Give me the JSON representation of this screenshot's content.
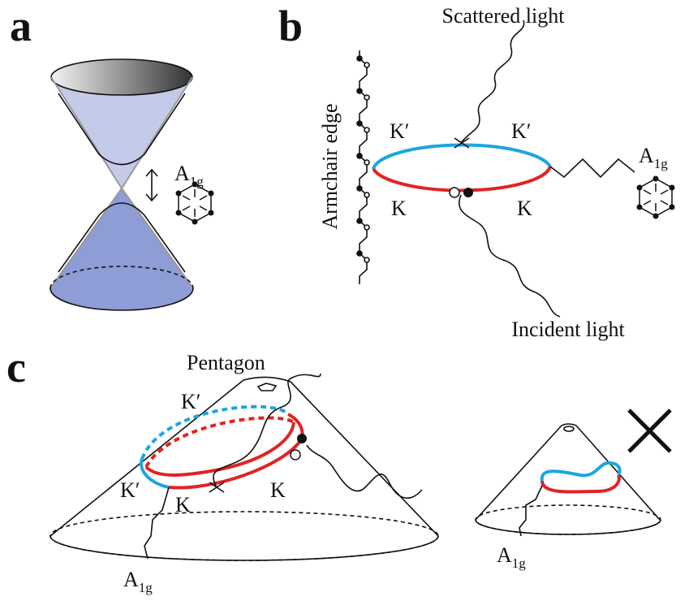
{
  "panel_a": {
    "label": "a",
    "phonon_label": {
      "main": "A",
      "sub": "1g"
    }
  },
  "panel_b": {
    "label": "b",
    "scattered": "Scattered light",
    "incident": "Incident light",
    "edge": "Armchair edge",
    "valley_top_left": "K′",
    "valley_top_right": "K′",
    "valley_bottom_left": "K",
    "valley_bottom_right": "K",
    "phonon_label": {
      "main": "A",
      "sub": "1g"
    }
  },
  "panel_c": {
    "label": "c",
    "pentagon": "Pentagon",
    "valley_top": "K′",
    "valley_left": "K′",
    "valley_bottom_left": "K",
    "valley_bottom_right": "K",
    "phonon_label": {
      "main": "A",
      "sub": "1g"
    },
    "phonon_label_small": {
      "main": "A",
      "sub": "1g"
    }
  }
}
